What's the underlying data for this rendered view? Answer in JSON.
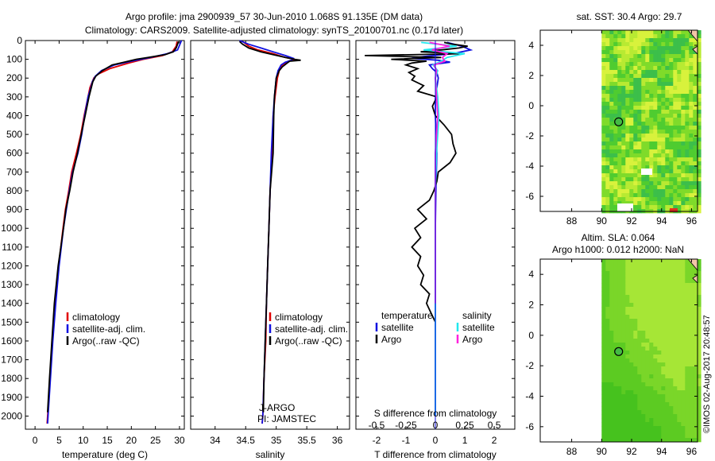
{
  "title_line1": "Argo profile: jma 2900939_57 30-Jun-2010 1.068S 91.135E (DM data)",
  "title_line2": "Climatology: CARS2009. Satellite-adjusted climatology: synTS_20100701.nc (0.17d later)",
  "footer": "©IMOS 02-Aug-2017 20:48:57",
  "colors": {
    "climatology": "#e00000",
    "satellite": "#1010e0",
    "argo": "#000000",
    "argo_s": "#ff22dd",
    "sat_s": "#22e8ee"
  },
  "chart_data": [
    {
      "id": "temperature",
      "type": "line",
      "xlabel": "temperature (deg C)",
      "xlim": [
        -2,
        31
      ],
      "xticks": [
        "0",
        "5",
        "10",
        "15",
        "20",
        "25",
        "30"
      ],
      "xtick_values": [
        0,
        5,
        10,
        15,
        20,
        25,
        30
      ],
      "ylim": [
        0,
        2070
      ],
      "yticks": [
        "0",
        "100",
        "200",
        "300",
        "400",
        "500",
        "600",
        "700",
        "800",
        "900",
        "1000",
        "1100",
        "1200",
        "1300",
        "1400",
        "1500",
        "1600",
        "1700",
        "1800",
        "1900",
        "2000"
      ],
      "ytick_values": [
        0,
        100,
        200,
        300,
        400,
        500,
        600,
        700,
        800,
        900,
        1000,
        1100,
        1200,
        1300,
        1400,
        1500,
        1600,
        1700,
        1800,
        1900,
        2000
      ],
      "legend": [
        "climatology",
        "satellite-adj. clim.",
        "Argo(..raw -QC)"
      ],
      "series": [
        {
          "name": "climatology",
          "color_key": "climatology",
          "depth": [
            5,
            30,
            60,
            80,
            100,
            120,
            150,
            180,
            200,
            250,
            300,
            400,
            500,
            600,
            700,
            800,
            900,
            1000,
            1200,
            1400,
            1600,
            1800,
            2000,
            2040
          ],
          "values": [
            29.5,
            29.3,
            28.5,
            26.5,
            22.5,
            19.5,
            15.5,
            13.0,
            12.2,
            11.4,
            11.0,
            10.2,
            9.5,
            8.6,
            7.6,
            7.0,
            6.3,
            5.8,
            4.9,
            4.2,
            3.6,
            3.1,
            2.6,
            2.5
          ]
        },
        {
          "name": "satellite-adj. clim.",
          "color_key": "satellite",
          "depth": [
            0,
            20,
            50,
            70,
            90,
            110,
            130,
            160,
            190,
            220,
            260,
            300,
            400,
            500,
            600,
            700,
            800,
            900,
            1000,
            1200,
            1400,
            1600,
            1800,
            2000,
            2040
          ],
          "values": [
            30.4,
            30.1,
            29.6,
            27.5,
            24.0,
            20.0,
            16.5,
            13.8,
            12.5,
            11.9,
            11.5,
            11.0,
            10.3,
            9.7,
            8.9,
            7.8,
            7.1,
            6.5,
            5.9,
            5.0,
            4.3,
            3.7,
            3.2,
            2.7,
            2.6
          ]
        },
        {
          "name": "Argo(..raw -QC)",
          "color_key": "argo",
          "depth": [
            5,
            20,
            40,
            60,
            75,
            90,
            100,
            115,
            130,
            160,
            190,
            220,
            260,
            300,
            400,
            500,
            600,
            700,
            800,
            900,
            1000,
            1200,
            1400,
            1600,
            1800,
            1980
          ],
          "values": [
            29.8,
            29.6,
            29.3,
            28.7,
            27.0,
            23.5,
            21.0,
            18.5,
            16.0,
            14.0,
            12.6,
            12.0,
            11.6,
            11.2,
            10.4,
            9.6,
            8.8,
            7.9,
            7.2,
            6.4,
            5.9,
            4.8,
            4.0,
            3.5,
            3.0,
            2.6
          ]
        }
      ]
    },
    {
      "id": "salinity",
      "type": "line",
      "xlabel": "salinity",
      "xlim": [
        33.6,
        36.2
      ],
      "xticks": [
        "34",
        "34.5",
        "35",
        "35.5",
        "36"
      ],
      "xtick_values": [
        34,
        34.5,
        35,
        35.5,
        36
      ],
      "ylim": [
        0,
        2070
      ],
      "legend": [
        "climatology",
        "satellite-adj. clim.",
        "Argo(..raw -QC)"
      ],
      "annotation": [
        "J-ARGO",
        "PI: JAMSTEC"
      ],
      "series": [
        {
          "name": "climatology",
          "color_key": "climatology",
          "depth": [
            5,
            30,
            50,
            70,
            90,
            100,
            110,
            130,
            160,
            200,
            300,
            400,
            600,
            800,
            1000,
            1200,
            1400,
            1600,
            1800,
            2000,
            2040
          ],
          "values": [
            34.45,
            34.55,
            34.7,
            34.95,
            35.15,
            35.3,
            35.2,
            35.1,
            35.05,
            35.02,
            34.98,
            34.95,
            34.93,
            34.9,
            34.88,
            34.86,
            34.84,
            34.83,
            34.8,
            34.78,
            34.77
          ]
        },
        {
          "name": "satellite-adj. clim.",
          "color_key": "satellite",
          "depth": [
            0,
            20,
            40,
            60,
            80,
            95,
            105,
            115,
            130,
            160,
            200,
            300,
            400,
            600,
            800,
            1000,
            1200,
            1400,
            1600,
            1800,
            2000,
            2040
          ],
          "values": [
            34.4,
            34.55,
            34.75,
            34.95,
            35.15,
            35.28,
            35.25,
            35.15,
            35.08,
            35.03,
            35.0,
            34.97,
            34.95,
            34.92,
            34.9,
            34.88,
            34.86,
            34.84,
            34.82,
            34.8,
            34.78,
            34.77
          ]
        },
        {
          "name": "Argo(..raw -QC)",
          "color_key": "argo",
          "depth": [
            5,
            20,
            40,
            60,
            75,
            90,
            100,
            105,
            110,
            120,
            140,
            160,
            200,
            300,
            400,
            600,
            800,
            1000,
            1200,
            1400,
            1600,
            1800,
            1980
          ],
          "values": [
            34.4,
            34.45,
            34.55,
            34.75,
            34.95,
            35.15,
            35.3,
            35.4,
            35.22,
            35.18,
            35.1,
            35.05,
            35.0,
            34.97,
            34.96,
            34.95,
            34.9,
            34.88,
            34.86,
            34.84,
            34.82,
            34.8,
            34.79
          ]
        }
      ]
    },
    {
      "id": "differences",
      "type": "line",
      "xlabel": "T difference from climatology",
      "top_label": "S difference from climatology",
      "xlim": [
        -2.7,
        2.7
      ],
      "xticks": [
        "-2",
        "-1",
        "0",
        "1",
        "2"
      ],
      "xtick_values": [
        -2,
        -1,
        0,
        1,
        2
      ],
      "sticks": [
        "-0.5",
        "-0.25",
        "0",
        "0.25",
        "0.5"
      ],
      "stick_values": [
        -0.5,
        -0.25,
        0,
        0.25,
        0.5
      ],
      "s_scale": 4,
      "ylim": [
        0,
        2070
      ],
      "legend_titles": [
        "temperature",
        "salinity"
      ],
      "legend": [
        "satellite",
        "Argo",
        "satellite",
        "Argo"
      ],
      "series": [
        {
          "name": "T satellite",
          "color_key": "satellite",
          "depth": [
            10,
            30,
            50,
            70,
            85,
            95,
            105,
            115,
            130,
            150,
            170,
            200,
            250,
            300,
            400,
            600,
            800,
            1000,
            1200,
            1400,
            1600,
            1800,
            2000
          ],
          "values": [
            0.4,
            0.9,
            1.2,
            0.6,
            -0.4,
            -0.8,
            0.1,
            0.5,
            -0.2,
            -0.1,
            0.05,
            0.1,
            0.05,
            0.0,
            0.0,
            0.05,
            0.02,
            0.0,
            0.0,
            0.0,
            0.0,
            0.0,
            0.0
          ]
        },
        {
          "name": "T Argo",
          "color_key": "argo",
          "depth": [
            10,
            20,
            30,
            40,
            50,
            60,
            70,
            80,
            90,
            100,
            110,
            120,
            130,
            150,
            170,
            190,
            210,
            240,
            270,
            300,
            350,
            400,
            450,
            500,
            550,
            600,
            650,
            700,
            750,
            800,
            850,
            900,
            950,
            1000,
            1050,
            1100,
            1150,
            1200,
            1250,
            1300,
            1350,
            1400,
            1450,
            1500
          ],
          "values": [
            0.3,
            0.6,
            1.1,
            0.8,
            0.2,
            -0.5,
            1.0,
            -2.4,
            0.2,
            -1.5,
            -0.3,
            -0.8,
            -1.0,
            -0.6,
            -0.9,
            -0.7,
            -0.8,
            -0.4,
            -0.6,
            0.05,
            -0.1,
            0.0,
            0.3,
            0.55,
            0.6,
            0.7,
            0.5,
            0.1,
            0.05,
            -0.05,
            -0.2,
            -0.6,
            -0.3,
            -0.7,
            -0.5,
            -0.8,
            -0.5,
            -0.6,
            -0.4,
            -0.5,
            -0.2,
            -0.3,
            -0.15,
            0.0
          ]
        },
        {
          "name": "S satellite",
          "color_key": "sat_s",
          "depth": [
            10,
            30,
            50,
            70,
            90,
            110,
            130,
            160,
            200,
            300,
            400,
            500,
            600,
            800,
            1000,
            1200,
            1400,
            1600,
            1800,
            2000
          ],
          "values": [
            -0.12,
            0.18,
            -0.1,
            0.25,
            0.1,
            0.05,
            -0.02,
            0.02,
            0.0,
            0.02,
            0.03,
            0.02,
            0.01,
            0.0,
            0.0,
            0.0,
            0.0,
            0.0,
            0.0,
            0.0
          ]
        },
        {
          "name": "S Argo",
          "color_key": "argo_s",
          "depth": [
            10,
            30,
            50,
            70,
            90,
            110,
            130,
            160,
            200,
            300,
            400,
            500,
            600,
            800,
            1000,
            1200,
            1400
          ],
          "values": [
            -0.05,
            0.12,
            -0.03,
            0.1,
            0.06,
            0.08,
            -0.01,
            0.01,
            0.0,
            0.01,
            0.02,
            0.01,
            0.0,
            0.0,
            0.0,
            0.0,
            0.0
          ]
        }
      ]
    },
    {
      "id": "sst_map",
      "type": "heatmap",
      "title": "sat. SST: 30.4  Argo: 29.7",
      "xlim": [
        85.9,
        96.4
      ],
      "ylim": [
        -7.0,
        5.0
      ],
      "xticks": [
        "88",
        "90",
        "92",
        "94",
        "96"
      ],
      "xtick_values": [
        88,
        90,
        92,
        94,
        96
      ],
      "yticks": [
        "4",
        "2",
        "0",
        "-2",
        "-4",
        "-6"
      ],
      "ytick_values": [
        4,
        2,
        0,
        -2,
        -4,
        -6
      ],
      "data_lon_start": 90,
      "marker": {
        "lon": 91.135,
        "lat": -1.068
      }
    },
    {
      "id": "sla_map",
      "type": "heatmap",
      "title_line1": "Altim. SLA: 0.064",
      "title_line2": "Argo h1000: 0.012 h2000: NaN",
      "xlim": [
        85.9,
        96.4
      ],
      "ylim": [
        -7.0,
        5.0
      ],
      "xticks": [
        "88",
        "90",
        "92",
        "94",
        "96"
      ],
      "xtick_values": [
        88,
        90,
        92,
        94,
        96
      ],
      "yticks": [
        "4",
        "2",
        "0",
        "-2",
        "-4",
        "-6"
      ],
      "ytick_values": [
        4,
        2,
        0,
        -2,
        -4,
        -6
      ],
      "data_lon_start": 90,
      "marker": {
        "lon": 91.135,
        "lat": -1.068
      }
    }
  ]
}
